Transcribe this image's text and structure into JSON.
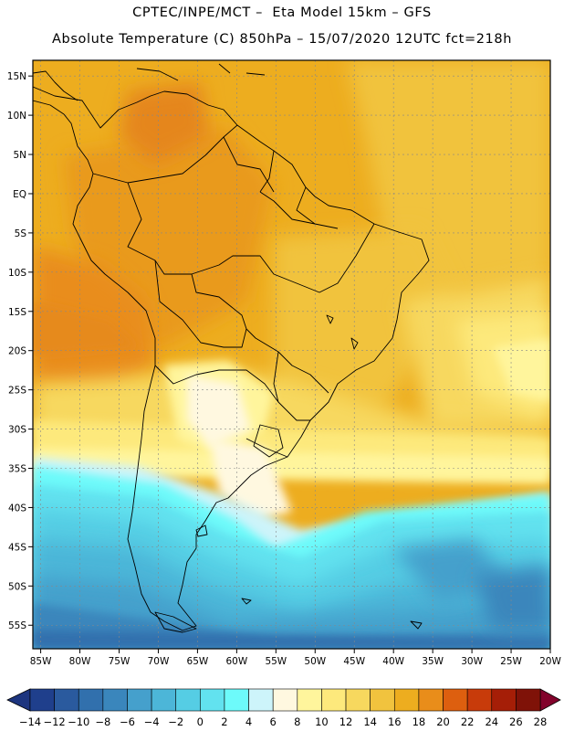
{
  "header": {
    "title_line1": "CPTEC/INPE/MCT –  Eta Model 15km – GFS",
    "title_line2": "Absolute Temperature (C) 850hPa – 15/07/2020 12UTC fct=218h"
  },
  "map": {
    "lat_labels": [
      "15N",
      "10N",
      "5N",
      "EQ",
      "5S",
      "10S",
      "15S",
      "20S",
      "25S",
      "30S",
      "35S",
      "40S",
      "45S",
      "50S",
      "55S"
    ],
    "lat_values": [
      15,
      10,
      5,
      0,
      -5,
      -10,
      -15,
      -20,
      -25,
      -30,
      -35,
      -40,
      -45,
      -50,
      -55
    ],
    "lon_labels": [
      "85W",
      "80W",
      "75W",
      "70W",
      "65W",
      "60W",
      "55W",
      "50W",
      "45W",
      "40W",
      "35W",
      "30W",
      "25W",
      "20W"
    ],
    "lon_values": [
      -85,
      -80,
      -75,
      -70,
      -65,
      -60,
      -55,
      -50,
      -45,
      -40,
      -35,
      -30,
      -25,
      -20
    ],
    "lon_range": [
      -86,
      -20
    ],
    "lat_range": [
      -58,
      17
    ]
  },
  "colorbar": {
    "labels": [
      "-14",
      "-12",
      "-10",
      "-8",
      "-6",
      "-4",
      "-2",
      "0",
      "2",
      "4",
      "6",
      "8",
      "10",
      "12",
      "14",
      "16",
      "18",
      "20",
      "22",
      "24",
      "26",
      "28"
    ],
    "colors": [
      "#1f3f8c",
      "#2a5a9e",
      "#3170ad",
      "#3a86bc",
      "#45a0cc",
      "#4cb6d8",
      "#55cde4",
      "#62e2ef",
      "#6dfafa",
      "#cdf4fa",
      "#fff8e0",
      "#fff59c",
      "#fde97c",
      "#f7d85e",
      "#f1c33e",
      "#edad1f",
      "#e98d1a",
      "#dd5f0f",
      "#c83b0a",
      "#a51e07",
      "#7f1208"
    ],
    "under_color": "#1d357f",
    "over_color": "#82022b"
  }
}
